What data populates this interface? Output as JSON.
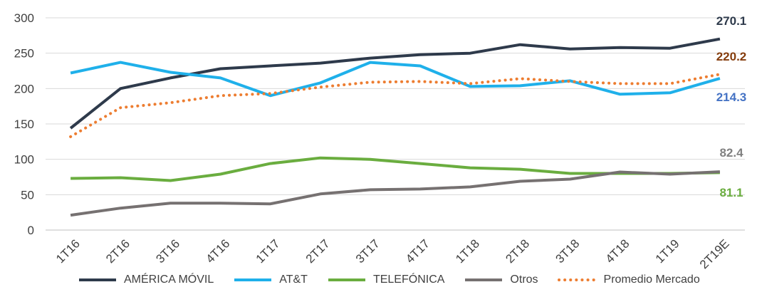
{
  "chart_data": {
    "type": "line",
    "categories": [
      "1T16",
      "2T16",
      "3T16",
      "4T16",
      "1T17",
      "2T17",
      "3T17",
      "4T17",
      "1T18",
      "2T18",
      "3T18",
      "4T18",
      "1T19",
      "2T19E"
    ],
    "ylim": [
      0,
      300
    ],
    "yticks": [
      "300",
      "250",
      "200",
      "150",
      "100",
      "50",
      "0"
    ],
    "series": [
      {
        "name": "AMÉRICA MÓVIL",
        "color": "#2e3a4b",
        "style": "solid",
        "values": [
          144,
          200,
          215,
          228,
          232,
          236,
          243,
          248,
          250,
          262,
          256,
          258,
          257,
          270.1
        ],
        "end_label": "270.1"
      },
      {
        "name": "AT&T",
        "color": "#1fb0ea",
        "style": "solid",
        "values": [
          222,
          237,
          223,
          215,
          190,
          208,
          237,
          232,
          203,
          204,
          211,
          192,
          194,
          214.3
        ],
        "end_label": "214.3",
        "end_label_color": "#4472c4"
      },
      {
        "name": "TELEFÓNICA",
        "color": "#6aad3f",
        "style": "solid",
        "values": [
          73,
          74,
          70,
          79,
          94,
          102,
          100,
          94,
          88,
          86,
          80,
          80,
          80,
          81.1
        ],
        "end_label": "81.1"
      },
      {
        "name": "Otros",
        "color": "#767171",
        "style": "solid",
        "values": [
          21,
          31,
          38,
          38,
          37,
          51,
          57,
          58,
          61,
          69,
          72,
          82,
          79,
          82.4
        ],
        "end_label": "82.4",
        "end_label_color": "#808080"
      },
      {
        "name": "Promedio Mercado",
        "color": "#ed7d31",
        "style": "dotted",
        "values": [
          132,
          173,
          180,
          190,
          193,
          202,
          209,
          210,
          207,
          214,
          210,
          207,
          207,
          220.2
        ],
        "end_label": "220.2",
        "end_label_color": "#843c0c"
      }
    ],
    "legend_position": "bottom"
  }
}
